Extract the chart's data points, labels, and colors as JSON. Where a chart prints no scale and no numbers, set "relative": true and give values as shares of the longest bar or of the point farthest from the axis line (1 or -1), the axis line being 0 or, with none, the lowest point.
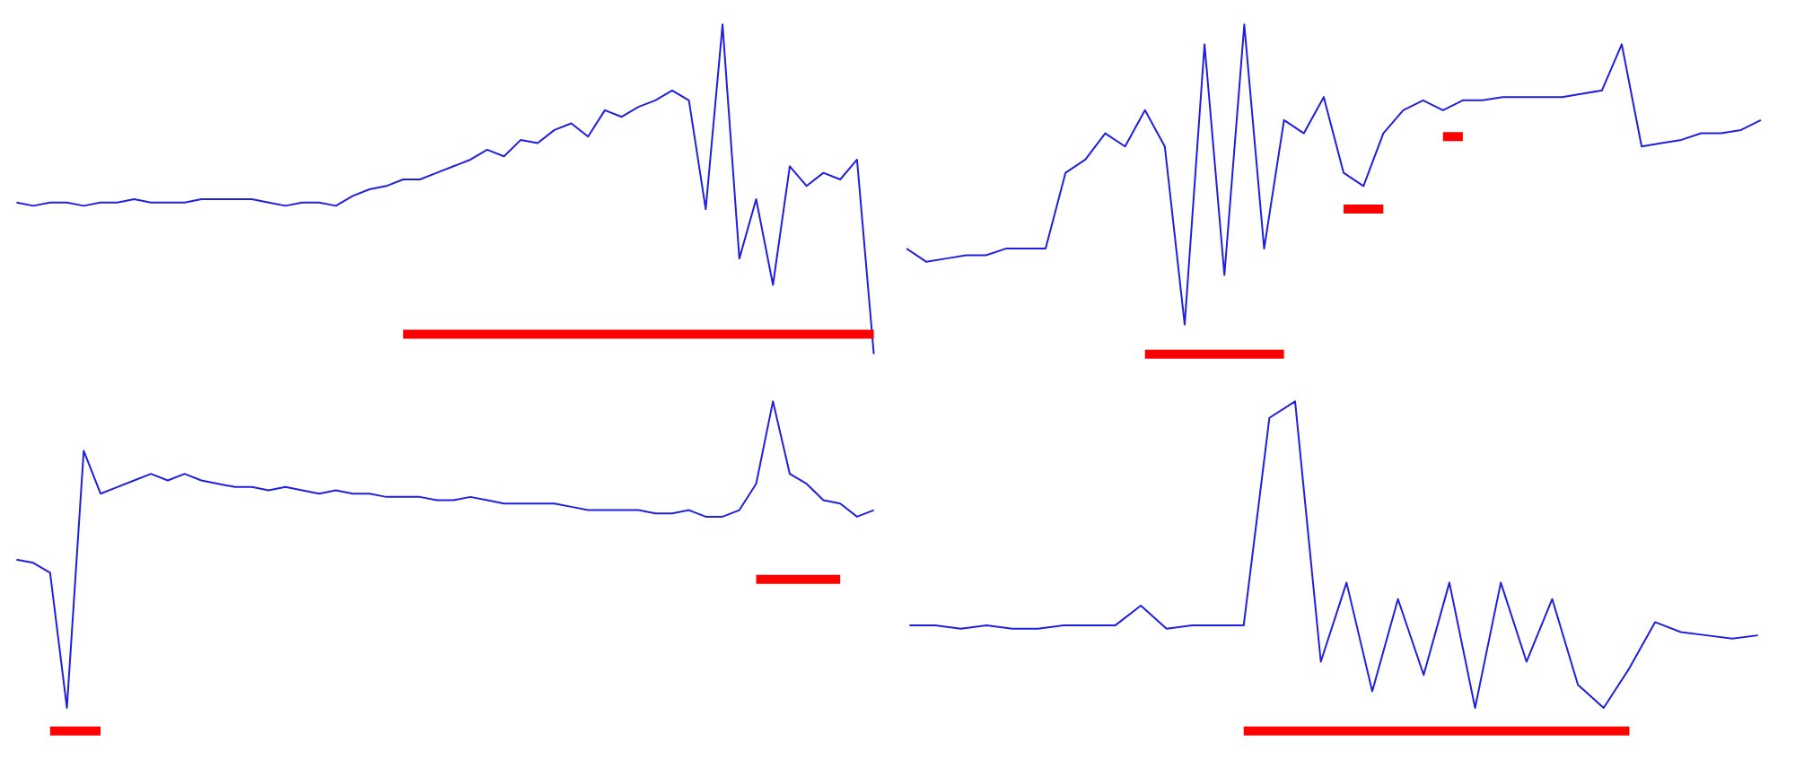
{
  "chart_data": [
    {
      "type": "line",
      "relative": true,
      "grid": false,
      "categories": [
        null,
        null,
        null,
        null,
        null,
        null,
        null,
        null,
        null,
        null,
        null,
        null,
        null,
        null,
        null,
        null,
        null,
        null,
        null,
        null,
        null,
        null,
        null,
        null,
        null,
        null,
        null,
        null,
        null,
        null,
        null,
        null,
        null,
        null,
        null,
        null,
        null,
        null,
        null,
        null,
        null,
        null,
        null,
        null,
        null,
        null,
        null,
        null,
        null,
        null,
        null,
        null
      ],
      "series": [
        {
          "color": "#1f1fe0",
          "values": [
            0.46,
            0.45,
            0.46,
            0.46,
            0.45,
            0.46,
            0.46,
            0.47,
            0.46,
            0.46,
            0.46,
            0.47,
            0.47,
            0.47,
            0.47,
            0.46,
            0.45,
            0.46,
            0.46,
            0.45,
            0.48,
            0.5,
            0.51,
            0.53,
            0.53,
            0.55,
            0.57,
            0.59,
            0.62,
            0.6,
            0.65,
            0.64,
            0.68,
            0.7,
            0.66,
            0.74,
            0.72,
            0.75,
            0.77,
            0.8,
            0.77,
            0.44,
            1.0,
            0.29,
            0.47,
            0.21,
            0.57,
            0.51,
            0.55,
            0.53,
            0.59,
            0
          ]
        },
        {
          "color": "#ff0000",
          "values": [
            null,
            null,
            null,
            null,
            null,
            null,
            null,
            null,
            null,
            null,
            null,
            null,
            null,
            null,
            null,
            null,
            null,
            null,
            null,
            null,
            null,
            null,
            null,
            0.06,
            0.06,
            0.06,
            0.06,
            0.06,
            0.06,
            0.06,
            0.06,
            0.06,
            0.06,
            0.06,
            0.06,
            0.06,
            0.06,
            0.06,
            0.06,
            0.06,
            0.06,
            0.06,
            0.06,
            0.06,
            0.06,
            0.06,
            0.06,
            0.06,
            0.06,
            0.06,
            0.06,
            0.06
          ]
        }
      ]
    },
    {
      "type": "line",
      "relative": true,
      "grid": false,
      "categories": [
        null,
        null,
        null,
        null,
        null,
        null,
        null,
        null,
        null,
        null,
        null,
        null,
        null,
        null,
        null,
        null,
        null,
        null,
        null,
        null,
        null,
        null,
        null,
        null,
        null,
        null,
        null,
        null,
        null,
        null,
        null,
        null,
        null,
        null,
        null,
        null,
        null,
        null,
        null,
        null,
        null,
        null,
        null,
        null
      ],
      "series": [
        {
          "color": "#1f1fe0",
          "values": [
            0.32,
            0.28,
            0.29,
            0.3,
            0.3,
            0.32,
            0.32,
            0.32,
            0.55,
            0.59,
            0.67,
            0.63,
            0.74,
            0.63,
            0.09,
            0.94,
            0.24,
            1.0,
            0.32,
            0.71,
            0.67,
            0.78,
            0.55,
            0.51,
            0.67,
            0.74,
            0.77,
            0.74,
            0.77,
            0.77,
            0.78,
            0.78,
            0.78,
            0.78,
            0.79,
            0.8,
            0.94,
            0.63,
            0.64,
            0.65,
            0.67,
            0.67,
            0.68,
            0.71
          ]
        },
        {
          "color": "#ff0000",
          "values": [
            null,
            null,
            null,
            null,
            null,
            null,
            null,
            null,
            null,
            null,
            null,
            null,
            0,
            0,
            0,
            0,
            0,
            0,
            0,
            0,
            null,
            null,
            0.44,
            0.44,
            0.44,
            null,
            null,
            0.66,
            0.66,
            null,
            null,
            null,
            null,
            null,
            null,
            null,
            null,
            null,
            null,
            null,
            null,
            null,
            null,
            null
          ]
        }
      ]
    },
    {
      "type": "line",
      "relative": true,
      "grid": false,
      "categories": [
        null,
        null,
        null,
        null,
        null,
        null,
        null,
        null,
        null,
        null,
        null,
        null,
        null,
        null,
        null,
        null,
        null,
        null,
        null,
        null,
        null,
        null,
        null,
        null,
        null,
        null,
        null,
        null,
        null,
        null,
        null,
        null,
        null,
        null,
        null,
        null,
        null,
        null,
        null,
        null,
        null,
        null,
        null,
        null,
        null,
        null,
        null,
        null,
        null,
        null,
        null,
        null
      ],
      "series": [
        {
          "color": "#1f1fe0",
          "values": [
            0.52,
            0.51,
            0.48,
            0.07,
            0.85,
            0.72,
            0.74,
            0.76,
            0.78,
            0.76,
            0.78,
            0.76,
            0.75,
            0.74,
            0.74,
            0.73,
            0.74,
            0.73,
            0.72,
            0.73,
            0.72,
            0.72,
            0.71,
            0.71,
            0.71,
            0.7,
            0.7,
            0.71,
            0.7,
            0.69,
            0.69,
            0.69,
            0.69,
            0.68,
            0.67,
            0.67,
            0.67,
            0.67,
            0.66,
            0.66,
            0.67,
            0.65,
            0.65,
            0.67,
            0.75,
            1.0,
            0.78,
            0.75,
            0.7,
            0.69,
            0.65,
            0.67
          ]
        },
        {
          "color": "#ff0000",
          "values": [
            null,
            null,
            0,
            0,
            0,
            0,
            null,
            null,
            null,
            null,
            null,
            null,
            null,
            null,
            null,
            null,
            null,
            null,
            null,
            null,
            null,
            null,
            null,
            null,
            null,
            null,
            null,
            null,
            null,
            null,
            null,
            null,
            null,
            null,
            null,
            null,
            null,
            null,
            null,
            null,
            null,
            null,
            null,
            null,
            0.46,
            0.46,
            0.46,
            0.46,
            0.46,
            0.46,
            null,
            null
          ]
        }
      ]
    },
    {
      "type": "line",
      "relative": true,
      "grid": false,
      "categories": [
        null,
        null,
        null,
        null,
        null,
        null,
        null,
        null,
        null,
        null,
        null,
        null,
        null,
        null,
        null,
        null,
        null,
        null,
        null,
        null,
        null,
        null,
        null,
        null,
        null,
        null,
        null,
        null,
        null,
        null,
        null,
        null,
        null,
        null
      ],
      "series": [
        {
          "color": "#1f1fe0",
          "values": [
            0.32,
            0.32,
            0.31,
            0.32,
            0.31,
            0.31,
            0.32,
            0.32,
            0.32,
            0.38,
            0.31,
            0.32,
            0.32,
            0.32,
            0.95,
            1.0,
            0.21,
            0.45,
            0.12,
            0.4,
            0.17,
            0.45,
            0.07,
            0.45,
            0.21,
            0.4,
            0.14,
            0.07,
            0.19,
            0.33,
            0.3,
            0.29,
            0.28,
            0.29
          ]
        },
        {
          "color": "#ff0000",
          "values": [
            null,
            null,
            null,
            null,
            null,
            null,
            null,
            null,
            null,
            null,
            null,
            null,
            null,
            0,
            0,
            0,
            0,
            0,
            0,
            0,
            0,
            0,
            0,
            0,
            0,
            0,
            0,
            0,
            0,
            null,
            null,
            null,
            null,
            null
          ]
        }
      ]
    }
  ]
}
